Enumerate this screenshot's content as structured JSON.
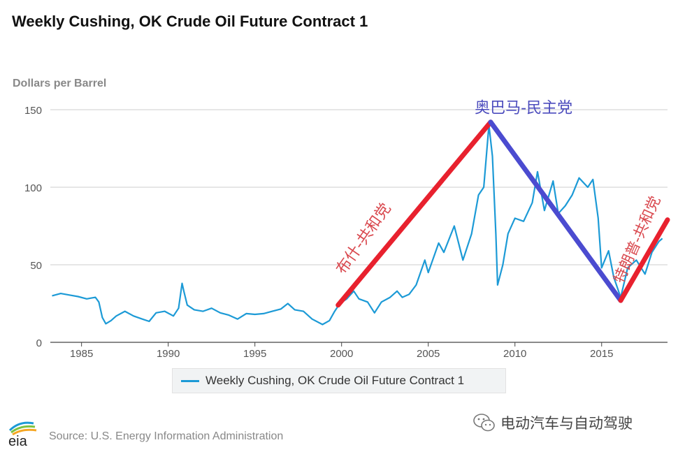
{
  "chart_data": {
    "type": "line",
    "title": "Weekly Cushing, OK Crude Oil Future Contract 1",
    "ylabel": "Dollars per Barrel",
    "xlabel": "",
    "xlim": [
      1983.2,
      2018.8
    ],
    "ylim": [
      0,
      150
    ],
    "x_ticks": [
      1985,
      1990,
      1995,
      2000,
      2005,
      2010,
      2015
    ],
    "y_ticks": [
      0,
      50,
      100,
      150
    ],
    "grid": "horizontal",
    "legend_position": "bottom-center",
    "series": [
      {
        "name": "Weekly Cushing, OK Crude Oil Future Contract 1",
        "color": "#1c9ad6",
        "points": [
          [
            1983.3,
            30
          ],
          [
            1983.8,
            31.5
          ],
          [
            1984.3,
            30.5
          ],
          [
            1984.8,
            29.5
          ],
          [
            1985.3,
            28
          ],
          [
            1985.8,
            29
          ],
          [
            1986.0,
            26
          ],
          [
            1986.2,
            16
          ],
          [
            1986.4,
            12
          ],
          [
            1986.7,
            14
          ],
          [
            1987.0,
            17
          ],
          [
            1987.5,
            20
          ],
          [
            1988.0,
            17
          ],
          [
            1988.5,
            15
          ],
          [
            1988.9,
            13.5
          ],
          [
            1989.3,
            19
          ],
          [
            1989.8,
            20
          ],
          [
            1990.3,
            17
          ],
          [
            1990.6,
            22
          ],
          [
            1990.8,
            38
          ],
          [
            1990.9,
            33
          ],
          [
            1991.1,
            24
          ],
          [
            1991.5,
            21
          ],
          [
            1992.0,
            20
          ],
          [
            1992.5,
            22
          ],
          [
            1993.0,
            19
          ],
          [
            1993.5,
            17.5
          ],
          [
            1994.0,
            15
          ],
          [
            1994.5,
            18.5
          ],
          [
            1995.0,
            18
          ],
          [
            1995.5,
            18.5
          ],
          [
            1996.0,
            20
          ],
          [
            1996.5,
            21.5
          ],
          [
            1996.9,
            25
          ],
          [
            1997.3,
            21
          ],
          [
            1997.8,
            20
          ],
          [
            1998.3,
            15
          ],
          [
            1998.9,
            11.5
          ],
          [
            1999.3,
            14
          ],
          [
            1999.6,
            20
          ],
          [
            1999.9,
            25
          ],
          [
            2000.3,
            28
          ],
          [
            2000.7,
            33
          ],
          [
            2001.0,
            28
          ],
          [
            2001.5,
            26
          ],
          [
            2001.9,
            19
          ],
          [
            2002.3,
            26
          ],
          [
            2002.8,
            29
          ],
          [
            2003.2,
            33
          ],
          [
            2003.5,
            29
          ],
          [
            2003.9,
            31
          ],
          [
            2004.3,
            37
          ],
          [
            2004.8,
            53
          ],
          [
            2005.0,
            45
          ],
          [
            2005.6,
            64
          ],
          [
            2005.9,
            58
          ],
          [
            2006.5,
            75
          ],
          [
            2007.0,
            53
          ],
          [
            2007.5,
            70
          ],
          [
            2007.9,
            95
          ],
          [
            2008.2,
            100
          ],
          [
            2008.5,
            140
          ],
          [
            2008.7,
            120
          ],
          [
            2008.9,
            70
          ],
          [
            2009.0,
            37
          ],
          [
            2009.3,
            50
          ],
          [
            2009.6,
            70
          ],
          [
            2010.0,
            80
          ],
          [
            2010.5,
            78
          ],
          [
            2011.0,
            90
          ],
          [
            2011.3,
            110
          ],
          [
            2011.7,
            85
          ],
          [
            2012.2,
            104
          ],
          [
            2012.5,
            83
          ],
          [
            2012.9,
            88
          ],
          [
            2013.3,
            95
          ],
          [
            2013.7,
            106
          ],
          [
            2014.2,
            100
          ],
          [
            2014.5,
            105
          ],
          [
            2014.8,
            80
          ],
          [
            2015.0,
            48
          ],
          [
            2015.4,
            59
          ],
          [
            2015.7,
            42
          ],
          [
            2016.1,
            29
          ],
          [
            2016.5,
            48
          ],
          [
            2017.0,
            53
          ],
          [
            2017.5,
            44
          ],
          [
            2017.9,
            58
          ],
          [
            2018.3,
            65
          ],
          [
            2018.5,
            67
          ]
        ]
      }
    ],
    "annotations": [
      {
        "text": "布什-共和党",
        "color": "#d9484e",
        "x": 2001.5,
        "y": 65
      },
      {
        "text": "奥巴马-民主党",
        "color": "#4b4bbd",
        "x": 2010.5,
        "y": 148
      },
      {
        "text": "特朗普-共和党",
        "color": "#d9484e",
        "x": 2017.3,
        "y": 65
      }
    ],
    "trend_lines": [
      {
        "color": "#e8212e",
        "points": [
          [
            1999.8,
            24
          ],
          [
            2008.6,
            142
          ]
        ]
      },
      {
        "color": "#4b4bd0",
        "points": [
          [
            2008.6,
            142
          ],
          [
            2016.1,
            27
          ]
        ]
      },
      {
        "color": "#e8212e",
        "points": [
          [
            2016.1,
            27
          ],
          [
            2018.8,
            79
          ]
        ]
      }
    ]
  },
  "legend": {
    "label": "Weekly Cushing, OK Crude Oil Future Contract 1"
  },
  "footer": {
    "source": "Source: U.S. Energy Information Administration",
    "logo_text": "eia",
    "watermark": "电动汽车与自动驾驶"
  }
}
